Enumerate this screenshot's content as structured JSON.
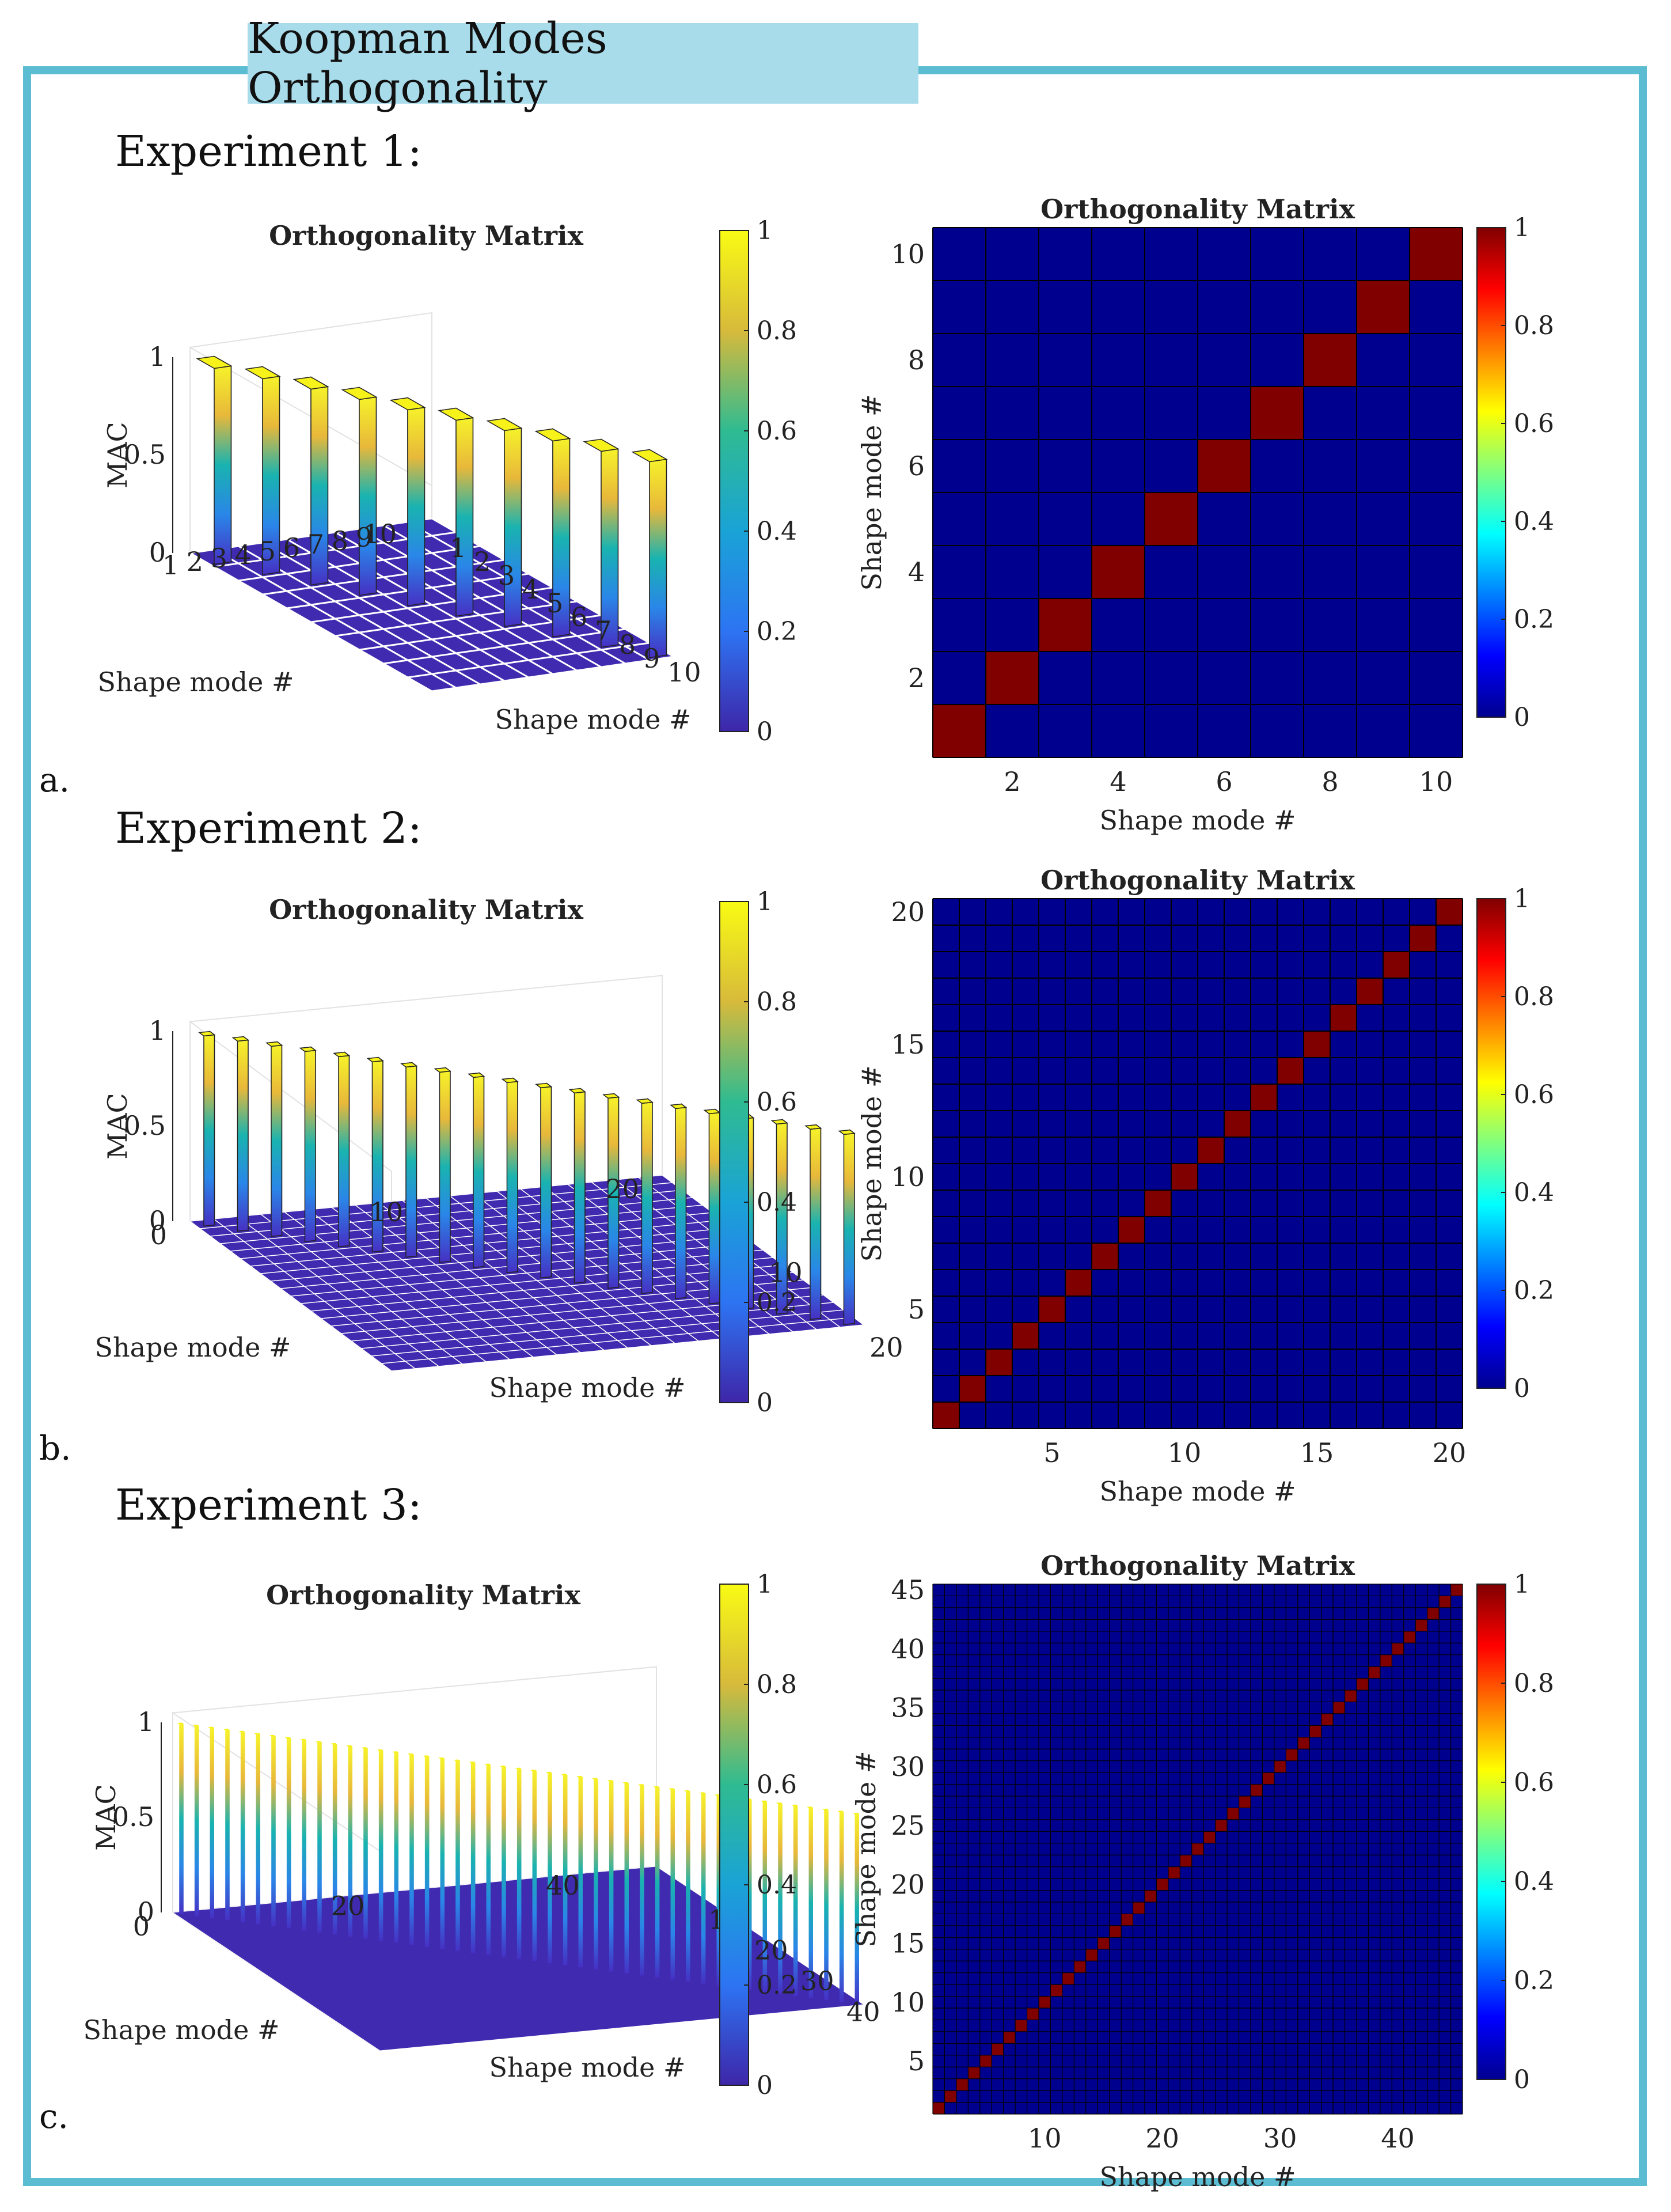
{
  "header": {
    "title": "Koopman Modes Orthogonality"
  },
  "panels": [
    {
      "letter": "a.",
      "heading": "Experiment 1:"
    },
    {
      "letter": "b.",
      "heading": "Experiment 2:"
    },
    {
      "letter": "c.",
      "heading": "Experiment 3:"
    }
  ],
  "chart_data": [
    {
      "type": "bar3d",
      "panel": "a",
      "title": "Orthogonality Matrix",
      "xlabel": "Shape mode #",
      "ylabel": "Shape mode #",
      "zlabel": "MAC",
      "n": 10,
      "values": "identity matrix (diagonal = 1, off-diagonal = 0)",
      "zlim": [
        0,
        1
      ],
      "zticks": [
        "0",
        "0.5",
        "1"
      ],
      "xticks": [
        "1",
        "2",
        "3",
        "4",
        "5",
        "6",
        "7",
        "8",
        "9",
        "10"
      ],
      "yticks": [
        "1",
        "2",
        "3",
        "4",
        "5",
        "6",
        "7",
        "8",
        "9",
        "10"
      ],
      "colormap": "parula",
      "colorbar_ticks": [
        "0",
        "0.2",
        "0.4",
        "0.6",
        "0.8",
        "1"
      ]
    },
    {
      "type": "heatmap",
      "panel": "a",
      "title": "Orthogonality Matrix",
      "xlabel": "Shape mode #",
      "ylabel": "Shape mode #",
      "n": 10,
      "values": "identity matrix (diagonal = 1, off-diagonal = 0)",
      "xticks": [
        "2",
        "4",
        "6",
        "8",
        "10"
      ],
      "yticks": [
        "2",
        "4",
        "6",
        "8",
        "10"
      ],
      "colormap": "jet",
      "colorbar_ticks": [
        "0",
        "0.2",
        "0.4",
        "0.6",
        "0.8",
        "1"
      ]
    },
    {
      "type": "bar3d",
      "panel": "b",
      "title": "Orthogonality Matrix",
      "xlabel": "Shape mode #",
      "ylabel": "Shape mode #",
      "zlabel": "MAC",
      "n": 20,
      "values": "identity matrix (diagonal = 1, off-diagonal = 0)",
      "zlim": [
        0,
        1
      ],
      "zticks": [
        "0",
        "0.5",
        "1"
      ],
      "xticks": [
        "0",
        "10",
        "20"
      ],
      "yticks": [
        "10",
        "20"
      ],
      "colormap": "parula",
      "colorbar_ticks": [
        "0",
        "0.2",
        "0.4",
        "0.6",
        "0.8",
        "1"
      ]
    },
    {
      "type": "heatmap",
      "panel": "b",
      "title": "Orthogonality Matrix",
      "xlabel": "Shape mode #",
      "ylabel": "Shape mode #",
      "n": 20,
      "values": "identity matrix (diagonal = 1, off-diagonal = 0)",
      "xticks": [
        "5",
        "10",
        "15",
        "20"
      ],
      "yticks": [
        "5",
        "10",
        "15",
        "20"
      ],
      "colormap": "jet",
      "colorbar_ticks": [
        "0",
        "0.2",
        "0.4",
        "0.6",
        "0.8",
        "1"
      ]
    },
    {
      "type": "bar3d",
      "panel": "c",
      "title": "Orthogonality Matrix",
      "xlabel": "Shape mode #",
      "ylabel": "Shape mode #",
      "zlabel": "MAC",
      "n": 45,
      "values": "identity matrix (diagonal = 1, off-diagonal = 0)",
      "zlim": [
        0,
        1
      ],
      "zticks": [
        "0",
        "0.5",
        "1"
      ],
      "xticks": [
        "0",
        "20",
        "40"
      ],
      "yticks": [
        "10",
        "20",
        "30",
        "40"
      ],
      "colormap": "parula",
      "colorbar_ticks": [
        "0",
        "0.2",
        "0.4",
        "0.6",
        "0.8",
        "1"
      ]
    },
    {
      "type": "heatmap",
      "panel": "c",
      "title": "Orthogonality Matrix",
      "xlabel": "Shape mode #",
      "ylabel": "Shape mode #",
      "n": 45,
      "values": "identity matrix (diagonal = 1, off-diagonal = 0)",
      "xticks": [
        "10",
        "20",
        "30",
        "40"
      ],
      "yticks": [
        "5",
        "10",
        "15",
        "20",
        "25",
        "30",
        "35",
        "40",
        "45"
      ],
      "colormap": "jet",
      "colorbar_ticks": [
        "0",
        "0.2",
        "0.4",
        "0.6",
        "0.8",
        "1"
      ]
    }
  ]
}
